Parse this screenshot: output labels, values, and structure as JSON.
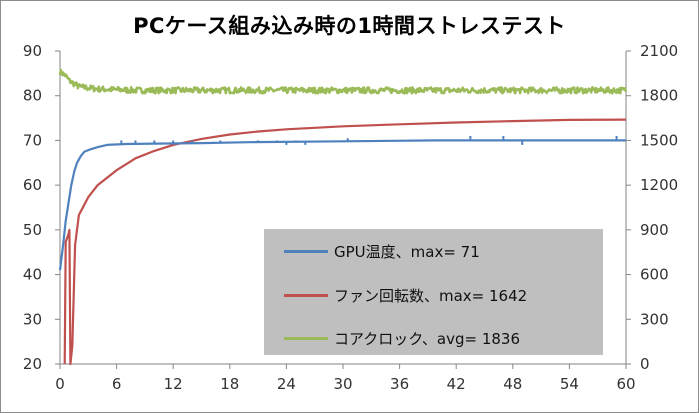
{
  "chart_data": {
    "type": "line",
    "title": "PCケース組み込み時の1時間ストレステスト",
    "x": {
      "min": 0,
      "max": 60,
      "ticks": [
        0,
        6,
        12,
        18,
        24,
        30,
        36,
        42,
        48,
        54,
        60
      ]
    },
    "y_left": {
      "min": 20,
      "max": 90,
      "ticks": [
        20,
        30,
        40,
        50,
        60,
        70,
        80,
        90
      ]
    },
    "y_right": {
      "min": 0,
      "max": 2100,
      "ticks": [
        0,
        300,
        600,
        900,
        1200,
        1500,
        1800,
        2100
      ]
    },
    "grid": false,
    "legend_position": "bottom-right",
    "series": [
      {
        "name": "GPU温度、max= 71",
        "axis": "left",
        "color": "#4f81bd",
        "points": [
          [
            0,
            41
          ],
          [
            0.3,
            46
          ],
          [
            0.6,
            52
          ],
          [
            0.9,
            56
          ],
          [
            1.2,
            60
          ],
          [
            1.5,
            63
          ],
          [
            1.8,
            65
          ],
          [
            2.2,
            66.5
          ],
          [
            2.6,
            67.5
          ],
          [
            3.2,
            68
          ],
          [
            4,
            68.5
          ],
          [
            5,
            69
          ],
          [
            7,
            69.2
          ],
          [
            10,
            69.3
          ],
          [
            15,
            69.4
          ],
          [
            20,
            69.6
          ],
          [
            30,
            69.8
          ],
          [
            40,
            70
          ],
          [
            50,
            70
          ],
          [
            60,
            70
          ]
        ],
        "spikes": [
          [
            6.5,
            70
          ],
          [
            8,
            70
          ],
          [
            10,
            70
          ],
          [
            12,
            70
          ],
          [
            14,
            70
          ],
          [
            17,
            70
          ],
          [
            21,
            70
          ],
          [
            23,
            70
          ],
          [
            24,
            69
          ],
          [
            25,
            70
          ],
          [
            26,
            69
          ],
          [
            28,
            70
          ],
          [
            30,
            70
          ],
          [
            30.5,
            70.5
          ],
          [
            33,
            70
          ],
          [
            43.5,
            71
          ],
          [
            47,
            71
          ],
          [
            49,
            69
          ],
          [
            52,
            70
          ],
          [
            59,
            71
          ]
        ]
      },
      {
        "name": "ファン回転数、max= 1642",
        "axis": "right",
        "color": "#c0504d",
        "points": [
          [
            0.5,
            0
          ],
          [
            0.6,
            820
          ],
          [
            0.9,
            870
          ],
          [
            1.0,
            900
          ],
          [
            1.1,
            0
          ],
          [
            1.3,
            120
          ],
          [
            1.6,
            800
          ],
          [
            2,
            1000
          ],
          [
            3,
            1120
          ],
          [
            4,
            1200
          ],
          [
            6,
            1300
          ],
          [
            8,
            1380
          ],
          [
            10,
            1430
          ],
          [
            12,
            1470
          ],
          [
            15,
            1510
          ],
          [
            18,
            1540
          ],
          [
            21,
            1560
          ],
          [
            24,
            1575
          ],
          [
            27,
            1585
          ],
          [
            30,
            1595
          ],
          [
            36,
            1608
          ],
          [
            42,
            1620
          ],
          [
            48,
            1630
          ],
          [
            54,
            1638
          ],
          [
            60,
            1640
          ]
        ]
      },
      {
        "name": "コアクロック、avg= 1836",
        "axis": "right",
        "color": "#9bbb59",
        "points": [
          [
            0,
            1960
          ],
          [
            0.5,
            1940
          ],
          [
            1,
            1900
          ],
          [
            2,
            1860
          ],
          [
            4,
            1845
          ],
          [
            8,
            1836
          ],
          [
            20,
            1836
          ],
          [
            40,
            1836
          ],
          [
            60,
            1836
          ]
        ],
        "noise": 20
      }
    ]
  }
}
